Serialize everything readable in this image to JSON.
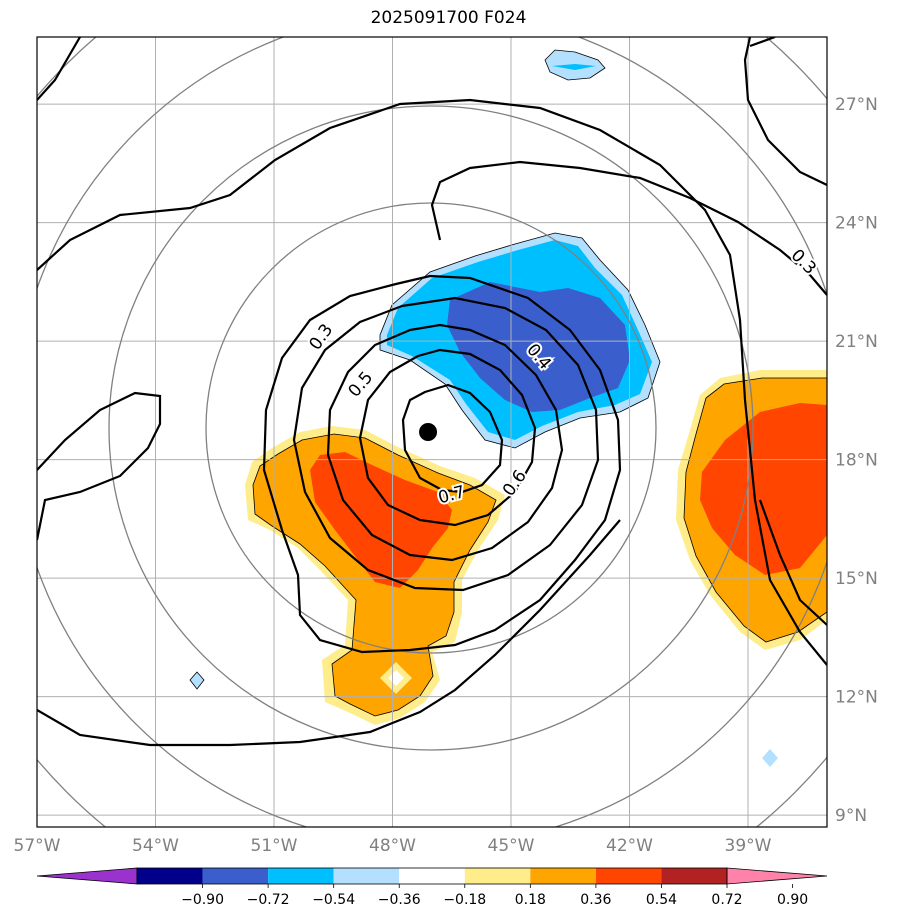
{
  "title": "2025091700 F024",
  "map": {
    "longitudes": [
      {
        "value": -57,
        "label": "57°W"
      },
      {
        "value": -54,
        "label": "54°W"
      },
      {
        "value": -51,
        "label": "51°W"
      },
      {
        "value": -48,
        "label": "48°W"
      },
      {
        "value": -45,
        "label": "45°W"
      },
      {
        "value": -42,
        "label": "42°W"
      },
      {
        "value": -39,
        "label": "39°W"
      }
    ],
    "latitudes": [
      {
        "value": 27,
        "label": "27°N"
      },
      {
        "value": 24,
        "label": "24°N"
      },
      {
        "value": 21,
        "label": "21°N"
      },
      {
        "value": 18,
        "label": "18°N"
      },
      {
        "value": 15,
        "label": "15°N"
      },
      {
        "value": 12,
        "label": "12°N"
      },
      {
        "value": 9,
        "label": "9°N"
      }
    ],
    "extent": {
      "lon_min": -57,
      "lon_max": -37,
      "lat_min": 8.7,
      "lat_max": 28.7
    },
    "center_marker": {
      "lon": -47.1,
      "lat": 18.7
    },
    "contour_labels": [
      {
        "text": "0.3",
        "lon": -49.8,
        "lat": 21.1
      },
      {
        "text": "0.5",
        "lon": -48.8,
        "lat": 19.9
      },
      {
        "text": "0.4",
        "lon": -44.3,
        "lat": 20.6
      },
      {
        "text": "0.6",
        "lon": -44.9,
        "lat": 17.4
      },
      {
        "text": "0.7",
        "lon": -46.5,
        "lat": 17.1
      },
      {
        "text": "0.3",
        "lon": -37.6,
        "lat": 23.0
      }
    ]
  },
  "colorbar": {
    "colors": [
      "#9a32cd",
      "#00008b",
      "#3a5fcd",
      "#00bfff",
      "#b3e0ff",
      "#ffffff",
      "#ffec8b",
      "#ffa500",
      "#ff4500",
      "#b22222",
      "#ff82ab"
    ],
    "tick_labels": [
      "−0.90",
      "−0.72",
      "−0.54",
      "−0.36",
      "−0.18",
      "0.18",
      "0.36",
      "0.54",
      "0.72",
      "0.90"
    ]
  }
}
